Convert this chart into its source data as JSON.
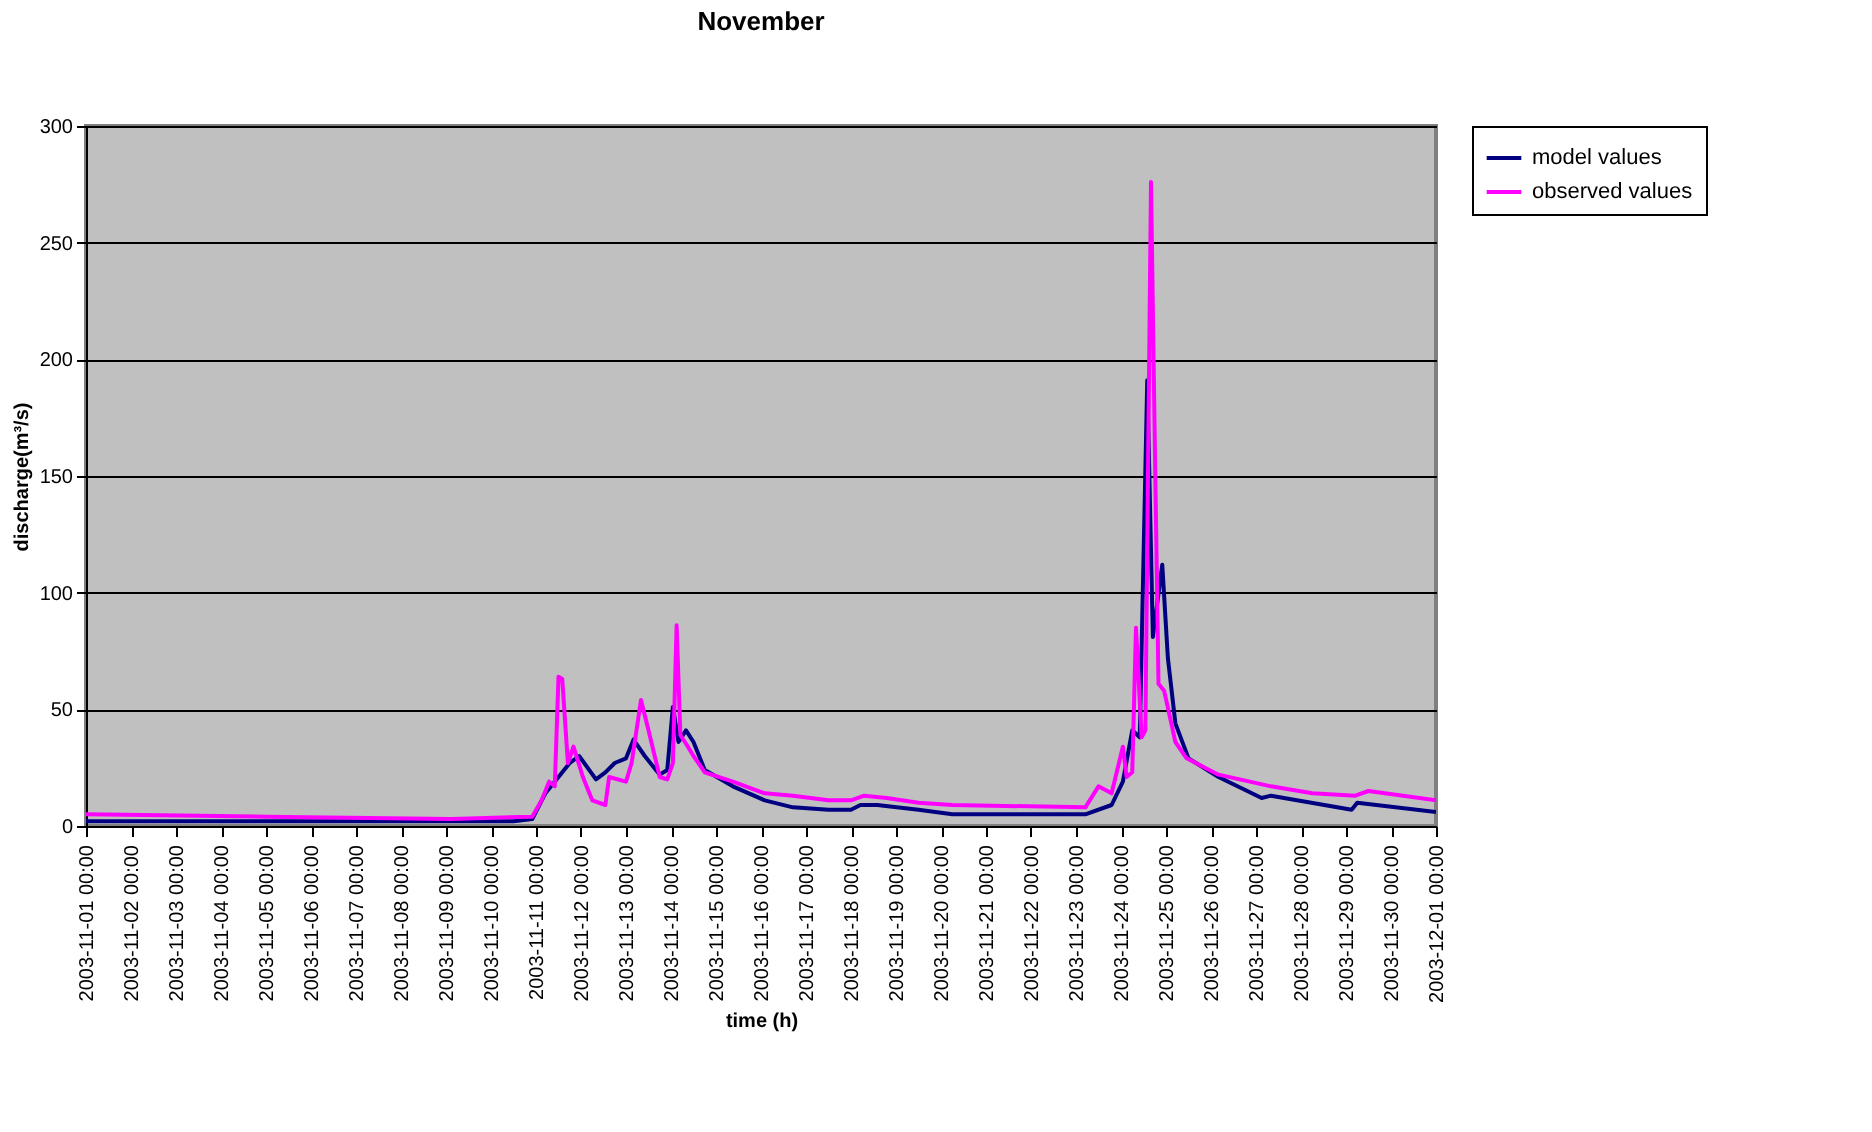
{
  "chart_data": {
    "type": "line",
    "title": "November",
    "xlabel": "time (h)",
    "ylabel": "discharge(m³/s)",
    "xlim": [
      "2003-11-01T00:00",
      "2003-12-01T00:00"
    ],
    "xticks": [
      {
        "value": "2003-11-01T00:00",
        "label": "2003-11-01 00:00"
      },
      {
        "value": "2003-11-02T00:00",
        "label": "2003-11-02 00:00"
      },
      {
        "value": "2003-11-03T00:00",
        "label": "2003-11-03 00:00"
      },
      {
        "value": "2003-11-04T00:00",
        "label": "2003-11-04 00:00"
      },
      {
        "value": "2003-11-05T00:00",
        "label": "2003-11-05 00:00"
      },
      {
        "value": "2003-11-06T00:00",
        "label": "2003-11-06 00:00"
      },
      {
        "value": "2003-11-07T00:00",
        "label": "2003-11-07 00:00"
      },
      {
        "value": "2003-11-08T00:00",
        "label": "2003-11-08 00:00"
      },
      {
        "value": "2003-11-09T00:00",
        "label": "2003-11-09 00:00"
      },
      {
        "value": "2003-11-10T00:00",
        "label": "2003-11-10 00:00"
      },
      {
        "value": "2003-11-11T00:00",
        "label": "2003-11-11 00:00"
      },
      {
        "value": "2003-11-12T00:00",
        "label": "2003-11-12 00:00"
      },
      {
        "value": "2003-11-13T00:00",
        "label": "2003-11-13 00:00"
      },
      {
        "value": "2003-11-14T00:00",
        "label": "2003-11-14 00:00"
      },
      {
        "value": "2003-11-15T00:00",
        "label": "2003-11-15 00:00"
      },
      {
        "value": "2003-11-16T00:00",
        "label": "2003-11-16 00:00"
      },
      {
        "value": "2003-11-17T00:00",
        "label": "2003-11-17 00:00"
      },
      {
        "value": "2003-11-18T00:00",
        "label": "2003-11-18 00:00"
      },
      {
        "value": "2003-11-19T00:00",
        "label": "2003-11-19 00:00"
      },
      {
        "value": "2003-11-20T00:00",
        "label": "2003-11-20 00:00"
      },
      {
        "value": "2003-11-21T00:00",
        "label": "2003-11-21 00:00"
      },
      {
        "value": "2003-11-22T00:00",
        "label": "2003-11-22 00:00"
      },
      {
        "value": "2003-11-23T00:00",
        "label": "2003-11-23 00:00"
      },
      {
        "value": "2003-11-24T00:00",
        "label": "2003-11-24 00:00"
      },
      {
        "value": "2003-11-25T00:00",
        "label": "2003-11-25 00:00"
      },
      {
        "value": "2003-11-26T00:00",
        "label": "2003-11-26 00:00"
      },
      {
        "value": "2003-11-27T00:00",
        "label": "2003-11-27 00:00"
      },
      {
        "value": "2003-11-28T00:00",
        "label": "2003-11-28 00:00"
      },
      {
        "value": "2003-11-29T00:00",
        "label": "2003-11-29 00:00"
      },
      {
        "value": "2003-11-30T00:00",
        "label": "2003-11-30 00:00"
      },
      {
        "value": "2003-12-01T00:00",
        "label": "2003-12-01 00:00"
      }
    ],
    "ylim": [
      0,
      300
    ],
    "yticks": [
      0,
      50,
      100,
      150,
      200,
      250,
      300
    ],
    "grid": "y",
    "legend": "right",
    "marker": "none",
    "line_style": "solid",
    "series": [
      {
        "name": "model values",
        "color": "#000080",
        "x": [
          "2003-11-01T00:00",
          "2003-11-10T12:00",
          "2003-11-10T22:00",
          "2003-11-11T05:00",
          "2003-11-11T12:00",
          "2003-11-11T18:00",
          "2003-11-11T23:00",
          "2003-11-12T08:00",
          "2003-11-12T13:00",
          "2003-11-12T18:00",
          "2003-11-13T00:00",
          "2003-11-13T04:00",
          "2003-11-13T10:00",
          "2003-11-13T18:00",
          "2003-11-13T22:00",
          "2003-11-14T01:00",
          "2003-11-14T04:00",
          "2003-11-14T08:00",
          "2003-11-14T12:00",
          "2003-11-14T18:00",
          "2003-11-15T09:00",
          "2003-11-16T02:00",
          "2003-11-16T17:00",
          "2003-11-17T12:00",
          "2003-11-18T00:00",
          "2003-11-18T05:00",
          "2003-11-18T14:00",
          "2003-11-19T12:00",
          "2003-11-20T06:00",
          "2003-11-23T05:00",
          "2003-11-23T19:00",
          "2003-11-24T01:00",
          "2003-11-24T06:00",
          "2003-11-24T10:00",
          "2003-11-24T14:00",
          "2003-11-24T17:00",
          "2003-11-24T22:00",
          "2003-11-25T01:00",
          "2003-11-25T05:00",
          "2003-11-25T12:00",
          "2003-11-26T04:00",
          "2003-11-27T03:00",
          "2003-11-27T08:00",
          "2003-11-29T03:00",
          "2003-11-29T06:00",
          "2003-12-01T00:00"
        ],
        "values": [
          2,
          2,
          3,
          14,
          21,
          27,
          30,
          20,
          23,
          27,
          29,
          37,
          30,
          22,
          24,
          51,
          36,
          41,
          36,
          24,
          17,
          11,
          8,
          7,
          7,
          9,
          9,
          7,
          5,
          5,
          9,
          19,
          41,
          38,
          191,
          81,
          112,
          72,
          44,
          29,
          21,
          12,
          13,
          7,
          10,
          6
        ]
      },
      {
        "name": "observed values",
        "color": "#ff00ff",
        "x": [
          "2003-11-01T00:00",
          "2003-11-05T00:00",
          "2003-11-09T03:00",
          "2003-11-10T22:00",
          "2003-11-11T03:00",
          "2003-11-11T07:00",
          "2003-11-11T10:00",
          "2003-11-11T12:00",
          "2003-11-11T14:00",
          "2003-11-11T17:00",
          "2003-11-11T20:00",
          "2003-11-12T01:00",
          "2003-11-12T06:00",
          "2003-11-12T13:00",
          "2003-11-12T15:00",
          "2003-11-13T00:00",
          "2003-11-13T03:00",
          "2003-11-13T08:00",
          "2003-11-13T12:00",
          "2003-11-13T18:00",
          "2003-11-13T22:00",
          "2003-11-14T01:00",
          "2003-11-14T03:00",
          "2003-11-14T05:00",
          "2003-11-14T09:00",
          "2003-11-14T12:00",
          "2003-11-14T18:00",
          "2003-11-15T09:00",
          "2003-11-16T02:00",
          "2003-11-16T17:00",
          "2003-11-17T12:00",
          "2003-11-18T00:00",
          "2003-11-18T07:00",
          "2003-11-18T19:00",
          "2003-11-19T12:00",
          "2003-11-20T06:00",
          "2003-11-23T05:00",
          "2003-11-23T12:00",
          "2003-11-23T19:00",
          "2003-11-24T01:00",
          "2003-11-24T03:00",
          "2003-11-24T06:00",
          "2003-11-24T08:00",
          "2003-11-24T11:00",
          "2003-11-24T13:00",
          "2003-11-24T16:00",
          "2003-11-24T18:00",
          "2003-11-24T20:00",
          "2003-11-24T23:00",
          "2003-11-25T05:00",
          "2003-11-25T11:00",
          "2003-11-26T04:00",
          "2003-11-27T08:00",
          "2003-11-28T06:00",
          "2003-11-29T05:00",
          "2003-11-29T12:00",
          "2003-12-01T00:00"
        ],
        "values": [
          5,
          4,
          3,
          4,
          11,
          19,
          17,
          64,
          63,
          27,
          34,
          21,
          11,
          9,
          21,
          19,
          27,
          54,
          41,
          21,
          20,
          27,
          86,
          39,
          34,
          30,
          23,
          19,
          14,
          13,
          11,
          11,
          13,
          12,
          10,
          9,
          8,
          17,
          14,
          34,
          21,
          23,
          85,
          38,
          41,
          276,
          166,
          61,
          58,
          36,
          29,
          22,
          17,
          14,
          13,
          15,
          11
        ]
      }
    ]
  }
}
